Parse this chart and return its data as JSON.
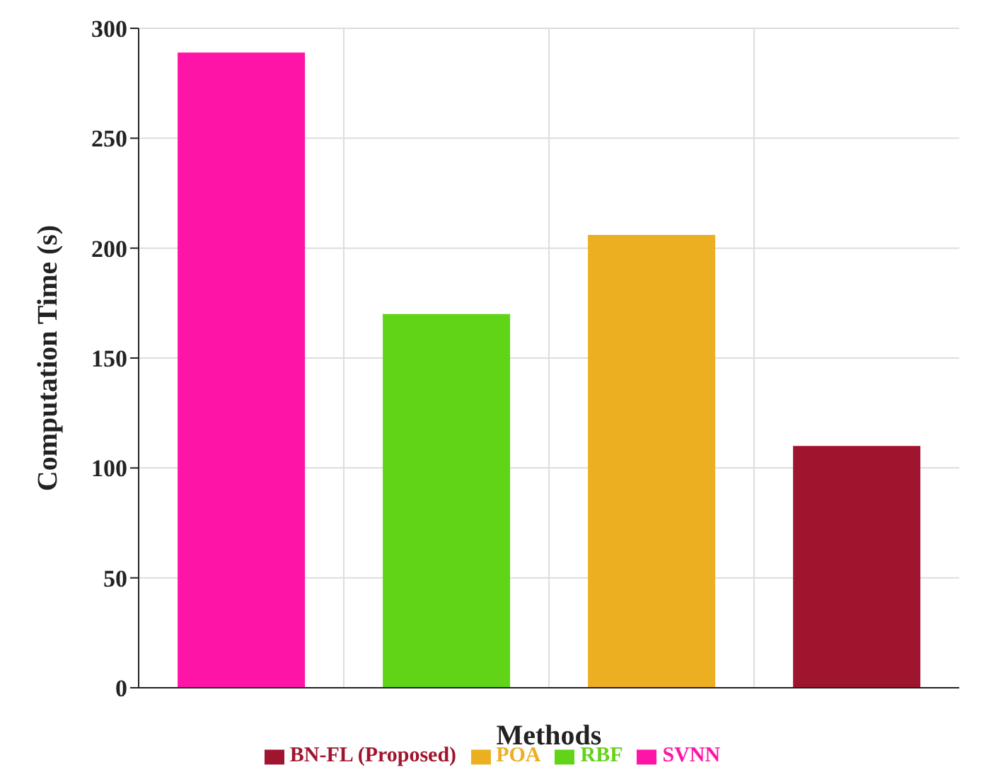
{
  "chart_data": {
    "type": "bar",
    "xlabel": "Methods",
    "ylabel": "Computation Time (s)",
    "categories": [
      null,
      null,
      null,
      null
    ],
    "series": [
      {
        "name": "SVNN",
        "color": "#ff14a8",
        "values": [
          289,
          null,
          null,
          null
        ]
      },
      {
        "name": "RBF",
        "color": "#62d417",
        "values": [
          null,
          170,
          null,
          null
        ]
      },
      {
        "name": "POA",
        "color": "#ecaf22",
        "values": [
          null,
          null,
          206,
          null
        ]
      },
      {
        "name": "BN-FL (Proposed)",
        "color": "#a0152e",
        "values": [
          null,
          null,
          null,
          110
        ]
      }
    ],
    "ylim": [
      0,
      300
    ],
    "yticks": [
      0,
      50,
      100,
      150,
      200,
      250,
      300
    ],
    "grid": true,
    "legend": "bottom"
  }
}
